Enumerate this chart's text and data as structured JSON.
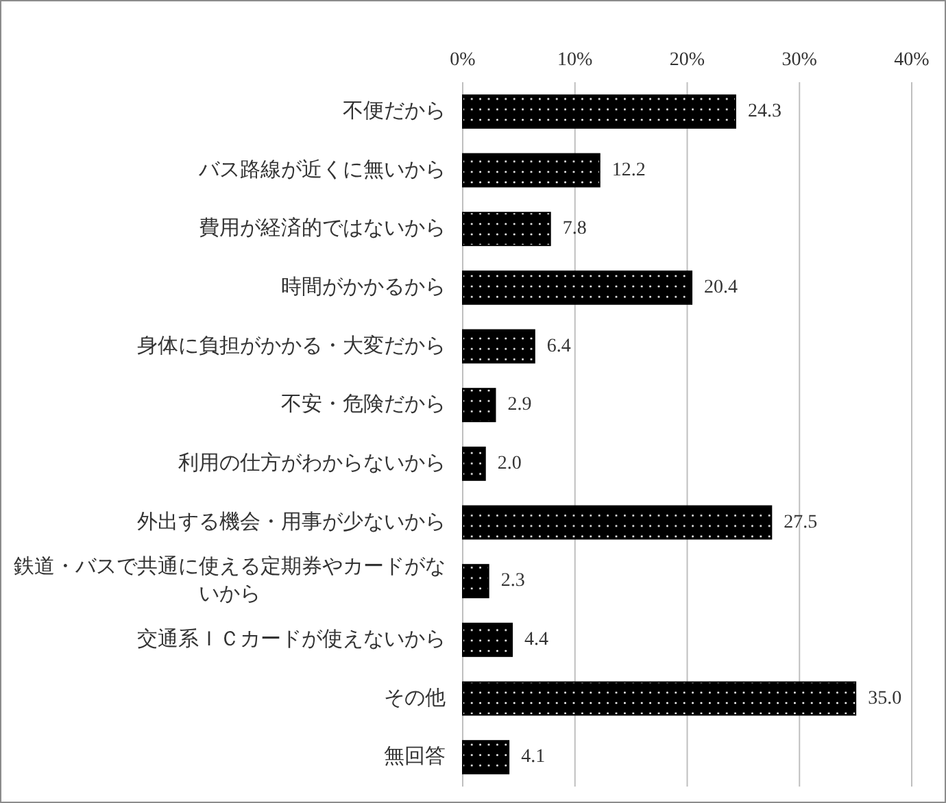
{
  "chart_data": {
    "type": "bar",
    "orientation": "horizontal",
    "categories": [
      "不便だから",
      "バス路線が近くに無いから",
      "費用が経済的ではないから",
      "時間がかかるから",
      "身体に負担がかかる・大変だから",
      "不安・危険だから",
      "利用の仕方がわからないから",
      "外出する機会・用事が少ないから",
      "鉄道・バスで共通に使える定期券やカードがないから",
      "交通系ＩＣカードが使えないから",
      "その他",
      "無回答"
    ],
    "values": [
      24.3,
      12.2,
      7.8,
      20.4,
      6.4,
      2.9,
      2.0,
      27.5,
      2.3,
      4.4,
      35.0,
      4.1
    ],
    "color": "#000000",
    "xlim": [
      0,
      40
    ],
    "xticks": [
      {
        "value": 0,
        "label": "0%"
      },
      {
        "value": 10,
        "label": "10%"
      },
      {
        "value": 20,
        "label": "20%"
      },
      {
        "value": 30,
        "label": "30%"
      },
      {
        "value": 40,
        "label": "40%"
      }
    ],
    "grid": "x",
    "value_labels": [
      "24.3",
      "12.2",
      "7.8",
      "20.4",
      "6.4",
      "2.9",
      "2.0",
      "27.5",
      "2.3",
      "4.4",
      "35.0",
      "4.1"
    ]
  }
}
